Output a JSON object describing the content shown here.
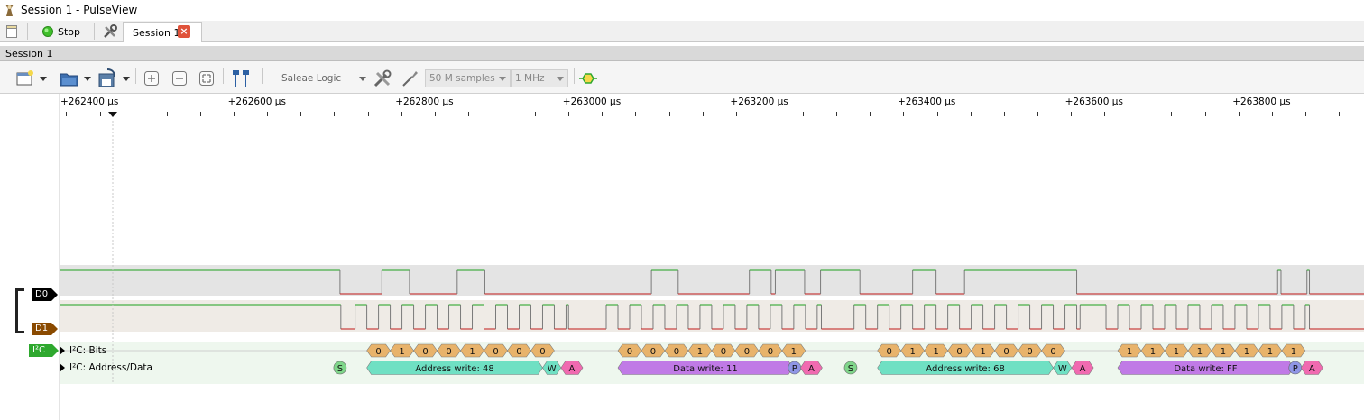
{
  "window": {
    "title": "Session 1 - PulseView"
  },
  "tabbar": {
    "stop_label": "Stop",
    "session_tab_label": "Session 1"
  },
  "session_strip": {
    "label": "Session 1"
  },
  "toolbar": {
    "device_label": "Saleae Logic",
    "samples_value": "50 M samples",
    "rate_value": "1 MHz"
  },
  "ruler": {
    "labels": [
      "+262400 µs",
      "+262600 µs",
      "+262800 µs",
      "+263000 µs",
      "+263200 µs",
      "+263400 µs",
      "+263600 µs",
      "+263800 µs"
    ]
  },
  "channels": {
    "d0": "D0",
    "d1": "D1",
    "decoder": "I²C"
  },
  "rows": {
    "bits": "I²C: Bits",
    "addr": "I²C: Address/Data"
  },
  "colors": {
    "bit": "#e8b36b",
    "address": "#6fe0c3",
    "data": "#c07ae6",
    "ack": "#f06ab0",
    "start": "#7fd68a",
    "stop": "#8f96e6",
    "trace_high": "#1ea01e",
    "trace_low": "#c01818"
  },
  "decode": {
    "bits": [
      {
        "t": 262753,
        "v": "0"
      },
      {
        "t": 262781,
        "v": "1"
      },
      {
        "t": 262809,
        "v": "0"
      },
      {
        "t": 262837,
        "v": "0"
      },
      {
        "t": 262865,
        "v": "1"
      },
      {
        "t": 262893,
        "v": "0"
      },
      {
        "t": 262921,
        "v": "0"
      },
      {
        "t": 262949,
        "v": "0"
      },
      {
        "t": 263053,
        "v": "0"
      },
      {
        "t": 263081,
        "v": "0"
      },
      {
        "t": 263109,
        "v": "0"
      },
      {
        "t": 263137,
        "v": "1"
      },
      {
        "t": 263165,
        "v": "0"
      },
      {
        "t": 263193,
        "v": "0"
      },
      {
        "t": 263221,
        "v": "0"
      },
      {
        "t": 263249,
        "v": "1"
      },
      {
        "t": 263363,
        "v": "0"
      },
      {
        "t": 263391,
        "v": "1"
      },
      {
        "t": 263419,
        "v": "1"
      },
      {
        "t": 263447,
        "v": "0"
      },
      {
        "t": 263475,
        "v": "1"
      },
      {
        "t": 263503,
        "v": "0"
      },
      {
        "t": 263531,
        "v": "0"
      },
      {
        "t": 263559,
        "v": "0"
      },
      {
        "t": 263650,
        "v": "1"
      },
      {
        "t": 263678,
        "v": "1"
      },
      {
        "t": 263706,
        "v": "1"
      },
      {
        "t": 263734,
        "v": "1"
      },
      {
        "t": 263762,
        "v": "1"
      },
      {
        "t": 263790,
        "v": "1"
      },
      {
        "t": 263818,
        "v": "1"
      },
      {
        "t": 263846,
        "v": "1"
      }
    ],
    "annotations": [
      {
        "kind": "start",
        "t0": 262707,
        "t1": 262707,
        "text": "S"
      },
      {
        "kind": "address",
        "t0": 262739,
        "t1": 262949,
        "text": "Address write: 48"
      },
      {
        "kind": "rw",
        "t0": 262949,
        "t1": 262971,
        "text": "W"
      },
      {
        "kind": "ack",
        "t0": 262971,
        "t1": 262997,
        "text": "A"
      },
      {
        "kind": "data",
        "t0": 263039,
        "t1": 263248,
        "text": "Data write: 11"
      },
      {
        "kind": "stop",
        "t0": 263250,
        "t1": 263250,
        "text": "P"
      },
      {
        "kind": "ack",
        "t0": 263257,
        "t1": 263283,
        "text": "A"
      },
      {
        "kind": "start",
        "t0": 263317,
        "t1": 263317,
        "text": "S"
      },
      {
        "kind": "address",
        "t0": 263349,
        "t1": 263559,
        "text": "Address write: 68"
      },
      {
        "kind": "rw",
        "t0": 263559,
        "t1": 263581,
        "text": "W"
      },
      {
        "kind": "ack",
        "t0": 263581,
        "t1": 263607,
        "text": "A"
      },
      {
        "kind": "data",
        "t0": 263636,
        "t1": 263846,
        "text": "Data write: FF"
      },
      {
        "kind": "stop",
        "t0": 263848,
        "t1": 263848,
        "text": "P"
      },
      {
        "kind": "ack",
        "t0": 263855,
        "t1": 263881,
        "text": "A"
      }
    ]
  },
  "traces": {
    "d0_edges": [
      262707,
      262757,
      262790,
      262847,
      262880,
      263079,
      263111,
      263196,
      263222,
      263227,
      263262,
      263281,
      263328,
      263391,
      263419,
      263453,
      263587,
      263827,
      263831,
      263862,
      263865
    ],
    "d1_start_level": 1,
    "d1_edges": [
      262708,
      262725,
      262739,
      262753,
      262767,
      262781,
      262795,
      262809,
      262823,
      262837,
      262851,
      262865,
      262879,
      262893,
      262907,
      262921,
      262935,
      262949,
      262963,
      262977,
      262980,
      263025,
      263039,
      263053,
      263067,
      263081,
      263095,
      263109,
      263123,
      263137,
      263151,
      263165,
      263179,
      263193,
      263207,
      263221,
      263235,
      263249,
      263263,
      263277,
      263282,
      263321,
      263335,
      263349,
      263363,
      263377,
      263391,
      263405,
      263419,
      263433,
      263447,
      263461,
      263475,
      263489,
      263503,
      263517,
      263531,
      263545,
      263559,
      263573,
      263587,
      263591,
      263622,
      263636,
      263650,
      263664,
      263678,
      263692,
      263706,
      263720,
      263734,
      263748,
      263762,
      263776,
      263790,
      263804,
      263818,
      263832,
      263846,
      263860,
      263865
    ]
  }
}
